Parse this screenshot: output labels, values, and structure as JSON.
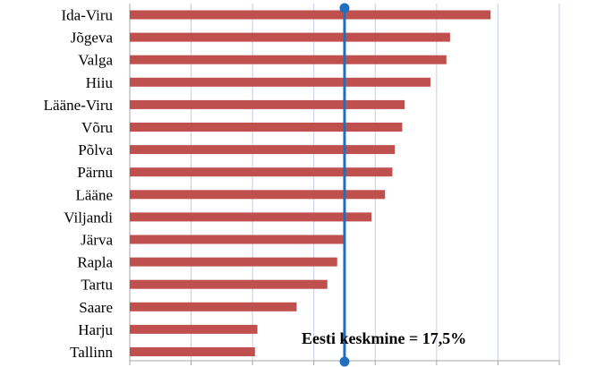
{
  "chart_data": {
    "type": "bar",
    "orientation": "horizontal",
    "categories": [
      "Ida-Viru",
      "Jõgeva",
      "Valga",
      "Hiiu",
      "Lääne-Viru",
      "Võru",
      "Põlva",
      "Pärnu",
      "Lääne",
      "Viljandi",
      "Järva",
      "Rapla",
      "Tartu",
      "Saare",
      "Harju",
      "Tallinn"
    ],
    "values": [
      29.4,
      26.1,
      25.8,
      24.5,
      22.4,
      22.2,
      21.6,
      21.4,
      20.8,
      19.7,
      17.5,
      16.9,
      16.1,
      13.6,
      10.4,
      10.2
    ],
    "xlim": [
      0,
      35
    ],
    "x_gridlines_every": 5,
    "x_tick_labels_visible": false,
    "grid": true,
    "legend": "none",
    "reference_line": {
      "value": 17.5,
      "label": "Eesti keskmine = 17,5%"
    },
    "colors": {
      "bar": "#c0504d",
      "reference_line": "#1f6fbf",
      "grid": "#c4cde8",
      "axis": "#a6a6a6"
    }
  }
}
